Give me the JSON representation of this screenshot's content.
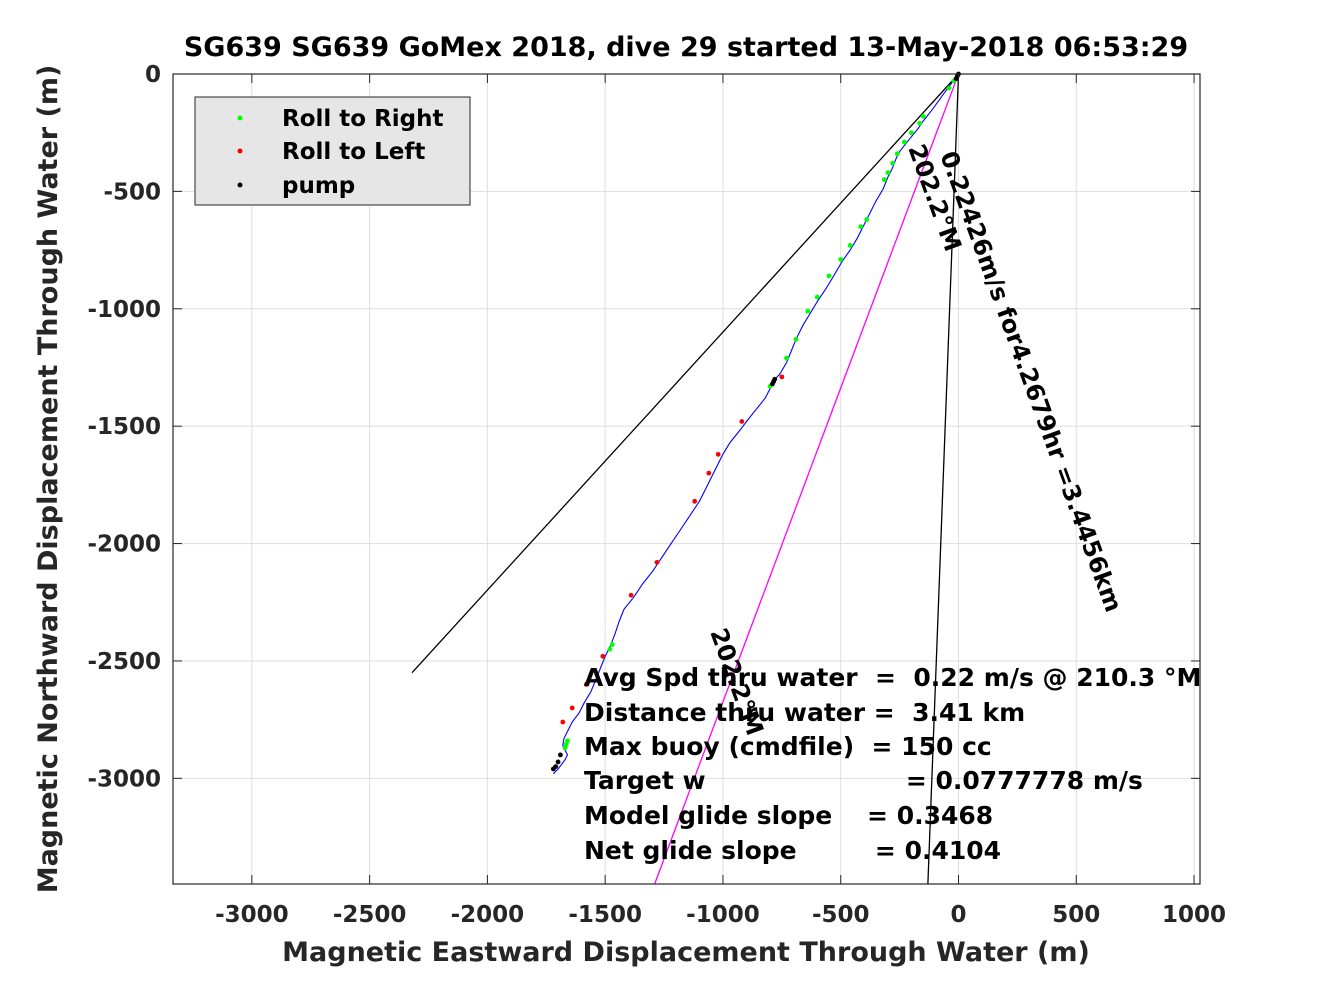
{
  "chart_data": {
    "type": "line",
    "title": "SG639 SG639 GoMex 2018, dive 29 started 13-May-2018 06:53:29",
    "xlabel": "Magnetic Eastward Displacement Through Water (m)",
    "ylabel": "Magnetic Northward Displacement Through Water (m)",
    "xlim": [
      -3350,
      1010
    ],
    "ylim": [
      -3450,
      0
    ],
    "xticks": [
      -3000,
      -2500,
      -2000,
      -1500,
      -1000,
      -500,
      0,
      500,
      1000
    ],
    "yticks": [
      0,
      -500,
      -1000,
      -1500,
      -2000,
      -2500,
      -3000
    ],
    "grid": true,
    "legend_position": "top-left",
    "legend": [
      {
        "label": "Roll to Right",
        "color": "#00ff00"
      },
      {
        "label": "Roll to Left",
        "color": "#ff0000"
      },
      {
        "label": "pump",
        "color": "#000000"
      }
    ],
    "track": {
      "color": "#0000ff",
      "x": [
        0,
        -30,
        -60,
        -110,
        -150,
        -170,
        -210,
        -250,
        -265,
        -280,
        -300,
        -320,
        -350,
        -375,
        -400,
        -430,
        -460,
        -495,
        -530,
        -560,
        -600,
        -630,
        -660,
        -690,
        -710,
        -730,
        -760,
        -780,
        -800,
        -820,
        -860,
        -900,
        -930,
        -970,
        -1000,
        -1020,
        -1040,
        -1070,
        -1100,
        -1140,
        -1180,
        -1220,
        -1260,
        -1300,
        -1340,
        -1380,
        -1420,
        -1440,
        -1460,
        -1480,
        -1500,
        -1520,
        -1540,
        -1560,
        -1590,
        -1610,
        -1640,
        -1660,
        -1675,
        -1680,
        -1670,
        -1660,
        -1670,
        -1685,
        -1700,
        -1720
      ],
      "y": [
        0,
        -40,
        -80,
        -150,
        -200,
        -230,
        -280,
        -330,
        -360,
        -400,
        -440,
        -490,
        -540,
        -590,
        -640,
        -700,
        -750,
        -800,
        -860,
        -910,
        -970,
        -1020,
        -1070,
        -1130,
        -1180,
        -1230,
        -1280,
        -1300,
        -1340,
        -1380,
        -1430,
        -1480,
        -1520,
        -1570,
        -1620,
        -1660,
        -1700,
        -1760,
        -1820,
        -1880,
        -1940,
        -2000,
        -2060,
        -2120,
        -2170,
        -2230,
        -2280,
        -2330,
        -2390,
        -2440,
        -2480,
        -2530,
        -2580,
        -2630,
        -2680,
        -2720,
        -2760,
        -2800,
        -2830,
        -2860,
        -2880,
        -2900,
        -2920,
        -2940,
        -2960,
        -2980
      ]
    },
    "roll_right": {
      "color": "#00ff00",
      "x": [
        -20,
        -40,
        -150,
        -165,
        -200,
        -230,
        -260,
        -280,
        -300,
        -315,
        -390,
        -415,
        -460,
        -500,
        -550,
        -600,
        -640,
        -690,
        -730,
        -800,
        -1470,
        -1480,
        -1660,
        -1665,
        -1670
      ],
      "y": [
        -30,
        -60,
        -180,
        -210,
        -250,
        -290,
        -340,
        -380,
        -420,
        -450,
        -620,
        -650,
        -730,
        -790,
        -860,
        -950,
        -1010,
        -1130,
        -1210,
        -1330,
        -2430,
        -2450,
        -2840,
        -2855,
        -2870
      ]
    },
    "roll_left": {
      "color": "#ff0000",
      "x": [
        -750,
        -920,
        -1020,
        -1060,
        -1120,
        -1280,
        -1390,
        -1510,
        -1580,
        -1640,
        -1680
      ],
      "y": [
        -1290,
        -1480,
        -1620,
        -1700,
        -1820,
        -2080,
        -2220,
        -2480,
        -2600,
        -2700,
        -2760
      ]
    },
    "pump": {
      "color": "#000000",
      "x": [
        0,
        -5,
        -10,
        -780,
        -785,
        -790,
        -1690,
        -1700,
        -1710,
        -1720
      ],
      "y": [
        0,
        -10,
        -20,
        -1300,
        -1310,
        -1320,
        -2900,
        -2930,
        -2950,
        -2960
      ]
    },
    "guide_lines": [
      {
        "color": "#000000",
        "x": [
          0,
          -2320
        ],
        "y": [
          0,
          -2550
        ]
      },
      {
        "color": "#000000",
        "x": [
          0,
          -130
        ],
        "y": [
          0,
          -3450
        ]
      },
      {
        "color": "#ff00ff",
        "x": [
          0,
          -1290
        ],
        "y": [
          0,
          -3450
        ]
      }
    ],
    "rotated_annotations": [
      {
        "text": "0.22426m/s for4.2679hr =3.4456km"
      },
      {
        "text": "202.2°M"
      },
      {
        "text": "202.2°M"
      }
    ],
    "stats": [
      "Avg Spd thru water  =  0.22 m/s @ 210.3 °M",
      "Distance thru water =  3.41 km",
      "Max buoy (cmdfile)  = 150 cc",
      "Target w                       = 0.0777778 m/s",
      "Model glide slope    = 0.3468",
      "Net glide slope         = 0.4104"
    ]
  }
}
